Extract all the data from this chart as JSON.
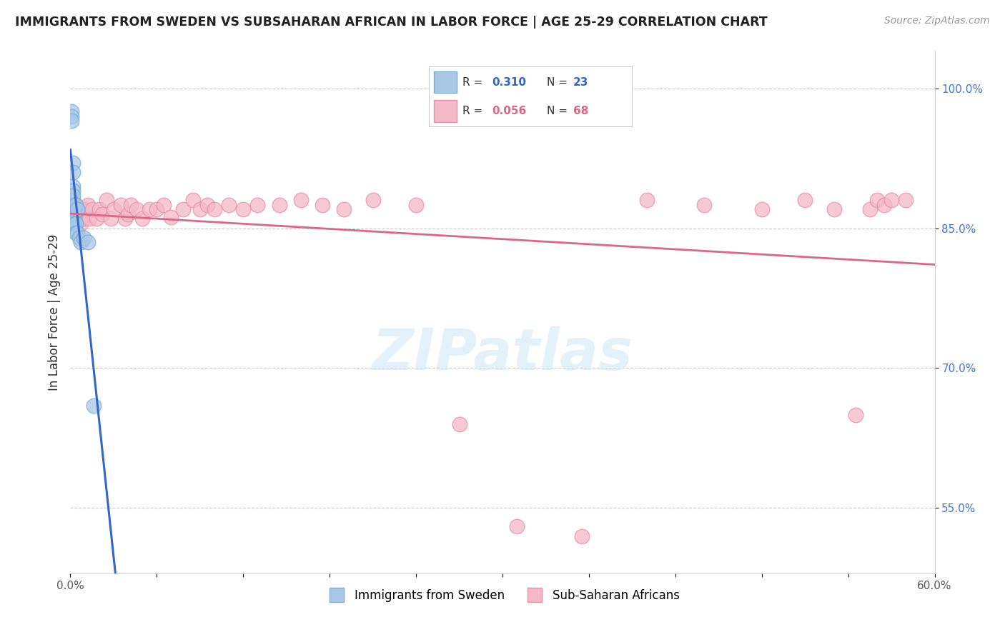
{
  "title": "IMMIGRANTS FROM SWEDEN VS SUBSAHARAN AFRICAN IN LABOR FORCE | AGE 25-29 CORRELATION CHART",
  "source": "Source: ZipAtlas.com",
  "ylabel": "In Labor Force | Age 25-29",
  "xlim": [
    0.0,
    0.6
  ],
  "ylim": [
    0.48,
    1.04
  ],
  "xtick_positions": [
    0.0,
    0.06,
    0.12,
    0.18,
    0.24,
    0.3,
    0.36,
    0.42,
    0.48,
    0.54,
    0.6
  ],
  "xtick_labels_show": {
    "0.0": "0.0%",
    "0.60": "60.0%"
  },
  "ytick_positions": [
    0.55,
    0.7,
    0.85,
    1.0
  ],
  "ytick_labels": [
    "55.0%",
    "70.0%",
    "85.0%",
    "100.0%"
  ],
  "legend_r1": "0.310",
  "legend_n1": "23",
  "legend_r2": "0.056",
  "legend_n2": "68",
  "blue_color": "#a8c8e8",
  "pink_color": "#f4b8c8",
  "blue_edge_color": "#7aadd4",
  "pink_edge_color": "#e890a8",
  "blue_line_color": "#3366cc",
  "pink_line_color": "#dd6688",
  "r_value_blue_color": "#3366cc",
  "r_value_pink_color": "#dd6688",
  "n_value_blue_color": "#3366cc",
  "n_value_pink_color": "#dd6688",
  "watermark": "ZIPatlas",
  "blue_x": [
    0.001,
    0.001,
    0.001,
    0.002,
    0.002,
    0.002,
    0.002,
    0.002,
    0.003,
    0.003,
    0.003,
    0.003,
    0.003,
    0.004,
    0.004,
    0.004,
    0.005,
    0.005,
    0.006,
    0.007,
    0.009,
    0.012,
    0.016
  ],
  "blue_y": [
    0.975,
    0.97,
    0.965,
    0.92,
    0.91,
    0.895,
    0.89,
    0.885,
    0.875,
    0.87,
    0.865,
    0.858,
    0.855,
    0.875,
    0.855,
    0.845,
    0.87,
    0.845,
    0.84,
    0.835,
    0.84,
    0.835,
    0.66
  ],
  "pink_x": [
    0.001,
    0.001,
    0.001,
    0.002,
    0.002,
    0.002,
    0.002,
    0.003,
    0.003,
    0.003,
    0.004,
    0.004,
    0.005,
    0.005,
    0.006,
    0.006,
    0.007,
    0.007,
    0.008,
    0.009,
    0.01,
    0.012,
    0.013,
    0.015,
    0.018,
    0.02,
    0.022,
    0.025,
    0.028,
    0.03,
    0.035,
    0.038,
    0.04,
    0.042,
    0.046,
    0.05,
    0.055,
    0.06,
    0.065,
    0.07,
    0.078,
    0.085,
    0.09,
    0.095,
    0.1,
    0.11,
    0.12,
    0.13,
    0.145,
    0.16,
    0.175,
    0.19,
    0.21,
    0.24,
    0.27,
    0.31,
    0.355,
    0.4,
    0.44,
    0.48,
    0.51,
    0.53,
    0.545,
    0.555,
    0.56,
    0.565,
    0.57,
    0.58
  ],
  "pink_y": [
    0.875,
    0.865,
    0.86,
    0.88,
    0.87,
    0.862,
    0.855,
    0.875,
    0.865,
    0.858,
    0.875,
    0.862,
    0.87,
    0.858,
    0.87,
    0.86,
    0.865,
    0.855,
    0.87,
    0.86,
    0.87,
    0.875,
    0.86,
    0.87,
    0.86,
    0.87,
    0.865,
    0.88,
    0.86,
    0.87,
    0.875,
    0.86,
    0.865,
    0.875,
    0.87,
    0.86,
    0.87,
    0.87,
    0.875,
    0.862,
    0.87,
    0.88,
    0.87,
    0.875,
    0.87,
    0.875,
    0.87,
    0.875,
    0.875,
    0.88,
    0.875,
    0.87,
    0.88,
    0.875,
    0.64,
    0.53,
    0.52,
    0.88,
    0.875,
    0.87,
    0.88,
    0.87,
    0.65,
    0.87,
    0.88,
    0.875,
    0.88,
    0.88
  ]
}
